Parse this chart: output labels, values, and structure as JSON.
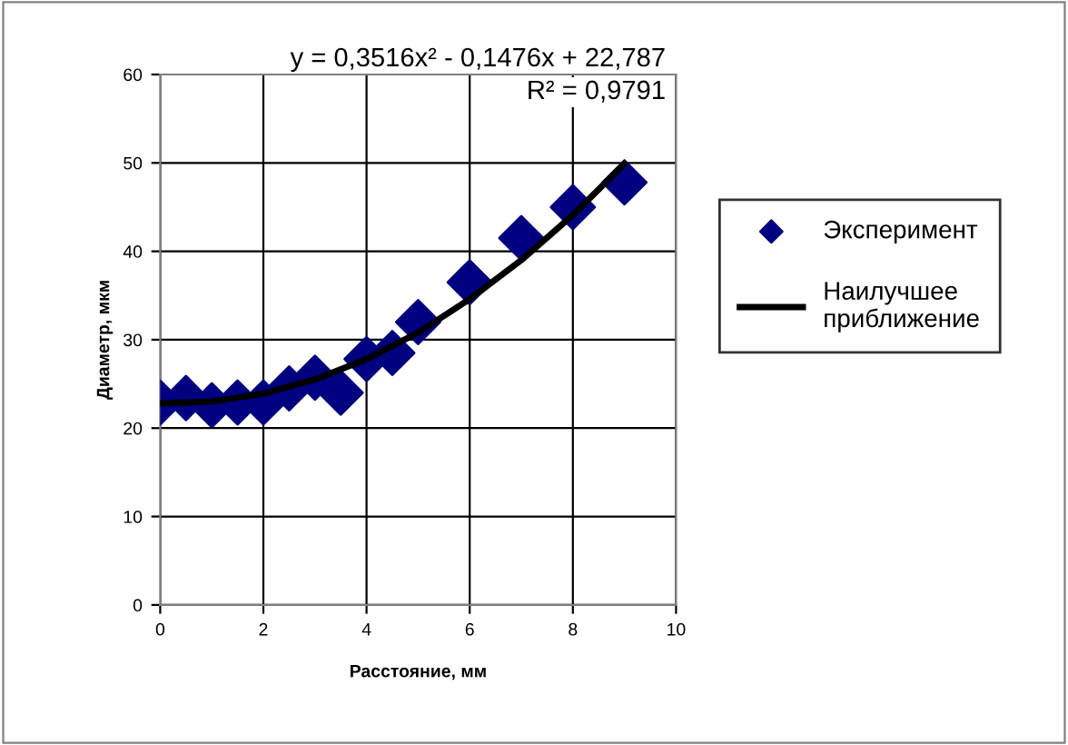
{
  "chart_data": {
    "type": "scatter",
    "xlabel": "Расстояние, мм",
    "ylabel": "Диаметр, мкм",
    "xlim": [
      0,
      10
    ],
    "ylim": [
      0,
      60
    ],
    "xticks": [
      0,
      2,
      4,
      6,
      8,
      10
    ],
    "yticks": [
      0,
      10,
      20,
      30,
      40,
      50,
      60
    ],
    "grid": true,
    "legend": "right",
    "marker": "diamond",
    "annotations": [
      "y = 0,3516x² - 0,1476x + 22,787",
      "R² = 0,9791"
    ],
    "series": [
      {
        "name": "Эксперимент",
        "color": "#000080",
        "x": [
          0,
          0.5,
          1,
          1.5,
          2,
          2.5,
          3,
          3.5,
          4,
          4.5,
          5,
          6,
          7,
          8,
          9
        ],
        "values": [
          22.9,
          23.4,
          22.6,
          22.9,
          22.9,
          24.5,
          25.7,
          24,
          27.8,
          28.5,
          32,
          36.5,
          41.5,
          45,
          47.8
        ]
      },
      {
        "name": "Наилучшее приближение",
        "type": "line",
        "color": "#000000",
        "marker": "none",
        "x": [
          0,
          1,
          2,
          3,
          4,
          5,
          6,
          7,
          8,
          9
        ],
        "values": [
          22.8,
          23.0,
          23.9,
          25.5,
          27.8,
          30.8,
          34.6,
          39.0,
          44.1,
          49.9
        ]
      }
    ]
  }
}
